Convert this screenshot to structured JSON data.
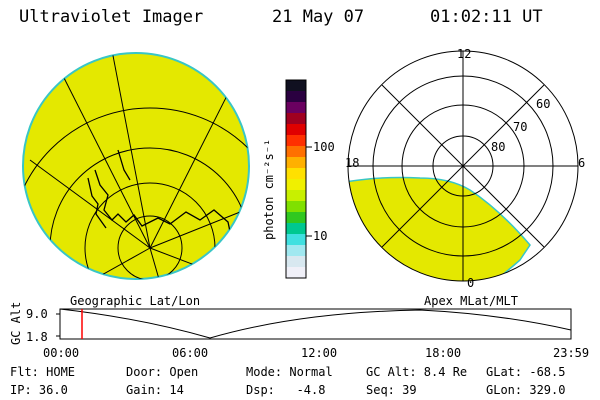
{
  "header": {
    "instrument": "Ultraviolet Imager",
    "date": "21 May 07",
    "time": "01:02:11 UT"
  },
  "left_panel": {
    "caption": "Geographic Lat/Lon",
    "fill_color": "#e4e800",
    "edge_color": "#39c6c6"
  },
  "right_panel": {
    "caption": "Apex MLat/MLT",
    "mlt_labels": [
      "12",
      "6",
      "0",
      "18"
    ],
    "lat_labels": [
      "60",
      "70",
      "80"
    ],
    "fill_color": "#e4e800"
  },
  "colorbar": {
    "unit_label": "photon cm⁻²s⁻¹",
    "tick_labels": [
      "100",
      "10"
    ],
    "colors_top_to_bottom": [
      "#101020",
      "#2a0040",
      "#6a0060",
      "#a00020",
      "#e00000",
      "#ff3000",
      "#ff7000",
      "#ffb000",
      "#ffe000",
      "#f0f000",
      "#c8f000",
      "#80e000",
      "#30c820",
      "#00c890",
      "#40e0e0",
      "#a0e8f0",
      "#d8e8f0",
      "#f0f0f8"
    ]
  },
  "altitude_plot": {
    "ylabel": "GC Alt",
    "y_ticks": [
      "9.0",
      "1.8"
    ],
    "x_ticks": [
      "00:00",
      "06:00",
      "12:00",
      "18:00",
      "23:59"
    ],
    "cursor_color": "#ff0000"
  },
  "info": {
    "flt": "Flt: HOME",
    "door": "Door: Open",
    "mode": "Mode: Normal",
    "gc_alt": "GC Alt: 8.4 Re",
    "glat": "GLat: -68.5",
    "ip": "IP: 36.0",
    "gain": "Gain: 14",
    "dsp": "Dsp:   -4.8",
    "seq": "Seq: 39",
    "glon": "GLon: 329.0"
  }
}
